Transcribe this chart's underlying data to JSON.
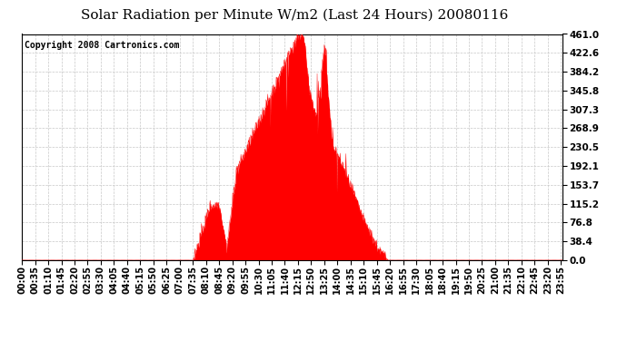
{
  "title": "Solar Radiation per Minute W/m2 (Last 24 Hours) 20080116",
  "copyright": "Copyright 2008 Cartronics.com",
  "yticks": [
    0.0,
    38.4,
    76.8,
    115.2,
    153.7,
    192.1,
    230.5,
    268.9,
    307.3,
    345.8,
    384.2,
    422.6,
    461.0
  ],
  "ymax": 461.0,
  "ymin": 0.0,
  "fill_color": "#FF0000",
  "line_color": "#FF0000",
  "dashed_line_color": "#FF0000",
  "background_color": "#FFFFFF",
  "grid_color": "#C8C8C8",
  "title_fontsize": 11,
  "copyright_fontsize": 7,
  "tick_fontsize": 7,
  "ytick_fontsize": 7.5
}
